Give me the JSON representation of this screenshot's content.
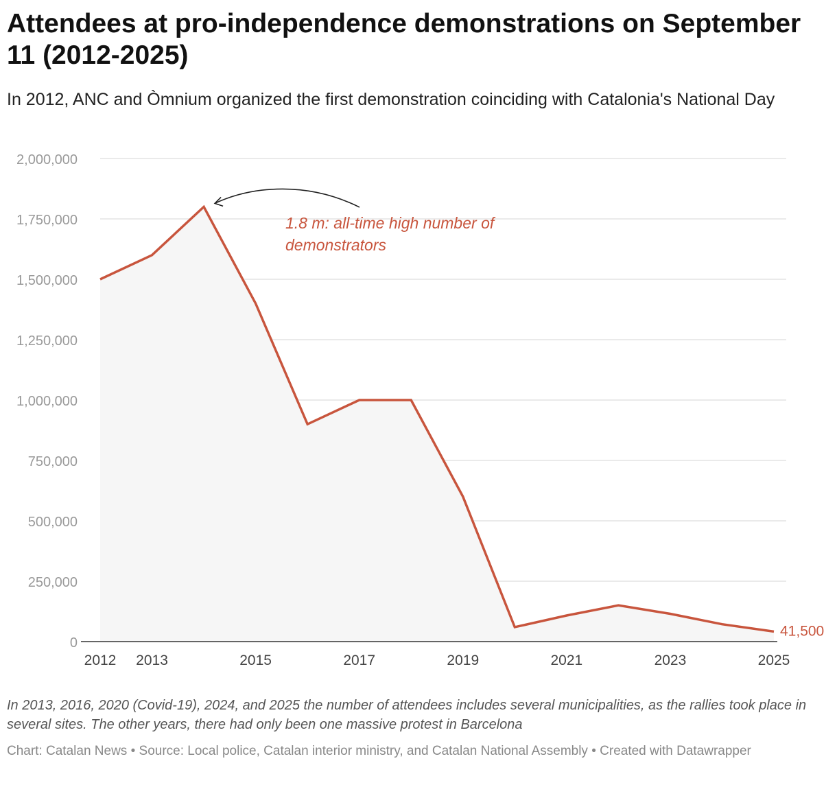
{
  "header": {
    "title": "Attendees at pro-independence demonstrations on September 11 (2012-2025)",
    "subtitle": "In 2012, ANC and Òmnium organized the first demonstration coinciding with Catalonia's National Day"
  },
  "chart_data": {
    "type": "area",
    "x": [
      2012,
      2013,
      2014,
      2015,
      2016,
      2017,
      2018,
      2019,
      2020,
      2021,
      2022,
      2023,
      2024,
      2025
    ],
    "series": [
      {
        "name": "Attendees",
        "values": [
          1500000,
          1600000,
          1800000,
          1400000,
          900000,
          1000000,
          1000000,
          600000,
          60000,
          108000,
          150000,
          115000,
          72000,
          41500
        ]
      }
    ],
    "x_ticks": [
      "2012",
      "2013",
      "2015",
      "2017",
      "2019",
      "2021",
      "2023",
      "2025"
    ],
    "y_ticks": [
      0,
      250000,
      500000,
      750000,
      1000000,
      1250000,
      1500000,
      1750000,
      2000000
    ],
    "y_tick_labels": [
      "0",
      "250,000",
      "500,000",
      "750,000",
      "1,000,000",
      "1,250,000",
      "1,500,000",
      "1,750,000",
      "2,000,000"
    ],
    "ylim": [
      0,
      2000000
    ],
    "xlim": [
      2012,
      2025
    ],
    "end_label": "41,500",
    "annotation": {
      "text_line1": "1.8 m: all-time high number of",
      "text_line2": "demonstrators",
      "points_to_year": 2014
    },
    "grid": true,
    "xlabel": "",
    "ylabel": ""
  },
  "colors": {
    "line": "#c8553d",
    "area": "#f6f6f6",
    "grid": "#e3e3e3",
    "axis_text": "#999999",
    "year_text": "#444444",
    "annotation_arrow": "#222222"
  },
  "footer": {
    "note": "In 2013, 2016, 2020 (Covid-19), 2024, and 2025 the number of attendees includes several municipalities, as the rallies took place in several sites. The other years, there had only been one massive protest in Barcelona",
    "chart_by": "Chart: Catalan News",
    "source": "Source: Local police, Catalan interior ministry, and Catalan National Assembly",
    "created_with": "Created with Datawrapper"
  }
}
